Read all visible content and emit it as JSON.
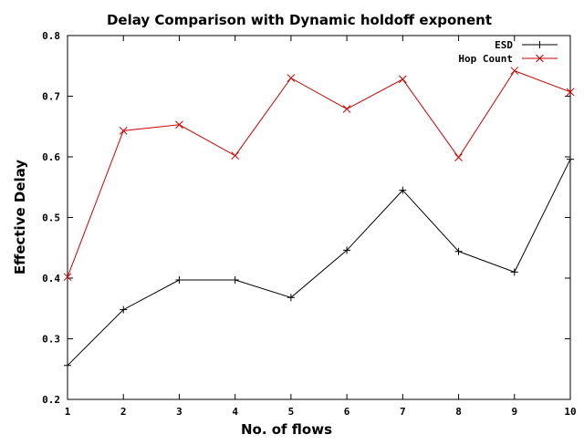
{
  "chart_data": {
    "type": "line",
    "title": "Delay Comparison with Dynamic holdoff exponent",
    "xlabel": "No. of flows",
    "ylabel": "Effective Delay",
    "xlim": [
      1,
      10
    ],
    "ylim": [
      0.2,
      0.8
    ],
    "x_ticks": [
      "1",
      "2",
      "3",
      "4",
      "5",
      "6",
      "7",
      "8",
      "9",
      "10"
    ],
    "y_ticks": [
      "0.2",
      "0.3",
      "0.4",
      "0.5",
      "0.6",
      "0.7",
      "0.8"
    ],
    "grid": false,
    "legend_position": "top-right",
    "x": [
      1,
      2,
      3,
      4,
      5,
      6,
      7,
      8,
      9,
      10
    ],
    "series": [
      {
        "name": "ESD",
        "color": "#000000",
        "marker": "plus",
        "values": [
          0.256,
          0.348,
          0.397,
          0.397,
          0.368,
          0.446,
          0.545,
          0.444,
          0.41,
          0.596
        ]
      },
      {
        "name": "Hop Count",
        "color": "#cc0000",
        "marker": "cross",
        "values": [
          0.402,
          0.643,
          0.653,
          0.602,
          0.73,
          0.679,
          0.728,
          0.599,
          0.742,
          0.707
        ]
      }
    ]
  }
}
